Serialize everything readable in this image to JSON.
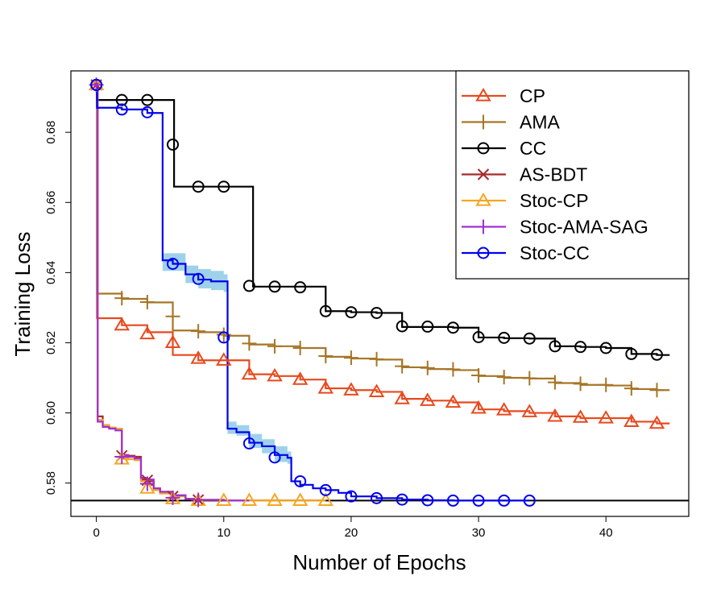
{
  "chart_data": {
    "type": "line",
    "title": "",
    "xlabel": "Number of Epochs",
    "ylabel": "Training Loss",
    "xlim": [
      -2,
      46.5
    ],
    "ylim": [
      0.5705,
      0.6975
    ],
    "xticks": [
      0,
      10,
      20,
      30,
      40
    ],
    "yticks": [
      0.58,
      0.6,
      0.62,
      0.64,
      0.66,
      0.68
    ],
    "ytick_labels": [
      "0.58",
      "0.60",
      "0.62",
      "0.64",
      "0.66",
      "0.68"
    ],
    "reference_line": 0.575,
    "legend_position": "top-right",
    "series": [
      {
        "name": "CP",
        "color": "#e8491d",
        "marker": "triangle",
        "x": [
          0,
          0.05,
          2,
          4,
          6,
          8,
          10,
          12,
          14,
          16,
          18,
          20,
          22,
          24,
          26,
          28,
          30,
          32,
          34,
          36,
          38,
          40,
          42,
          44,
          45
        ],
        "y": [
          0.6935,
          0.627,
          0.625,
          0.623,
          0.6165,
          0.615,
          0.615,
          0.611,
          0.6105,
          0.6095,
          0.607,
          0.6065,
          0.606,
          0.604,
          0.6035,
          0.603,
          0.601,
          0.6005,
          0.6,
          0.599,
          0.5985,
          0.5985,
          0.5975,
          0.597,
          0.597
        ],
        "markers": [
          [
            2,
            0.625
          ],
          [
            4,
            0.6225
          ],
          [
            6,
            0.62
          ],
          [
            8,
            0.6155
          ],
          [
            10,
            0.615
          ],
          [
            12,
            0.611
          ],
          [
            14,
            0.6105
          ],
          [
            16,
            0.6095
          ],
          [
            18,
            0.607
          ],
          [
            20,
            0.6065
          ],
          [
            22,
            0.606
          ],
          [
            24,
            0.604
          ],
          [
            26,
            0.6035
          ],
          [
            28,
            0.603
          ],
          [
            30,
            0.6013
          ],
          [
            32,
            0.6008
          ],
          [
            34,
            0.6003
          ],
          [
            36,
            0.599
          ],
          [
            38,
            0.5987
          ],
          [
            40,
            0.5985
          ],
          [
            42,
            0.5975
          ],
          [
            44,
            0.597
          ]
        ]
      },
      {
        "name": "AMA",
        "color": "#a67626",
        "marker": "plus",
        "x": [
          0,
          0.05,
          2,
          4,
          6,
          8,
          10,
          12,
          14,
          16,
          18,
          20,
          22,
          24,
          26,
          28,
          30,
          32,
          34,
          36,
          38,
          40,
          42,
          44,
          45
        ],
        "y": [
          0.6935,
          0.634,
          0.6325,
          0.6315,
          0.6235,
          0.623,
          0.622,
          0.6195,
          0.619,
          0.6185,
          0.616,
          0.6155,
          0.6152,
          0.613,
          0.6125,
          0.6122,
          0.6105,
          0.61,
          0.6098,
          0.6085,
          0.608,
          0.6078,
          0.6068,
          0.6065,
          0.6065
        ],
        "markers": [
          [
            2,
            0.6327
          ],
          [
            4,
            0.6316
          ],
          [
            6,
            0.6275
          ],
          [
            8,
            0.6233
          ],
          [
            10,
            0.6223
          ],
          [
            12,
            0.6198
          ],
          [
            14,
            0.619
          ],
          [
            16,
            0.6185
          ],
          [
            18,
            0.6162
          ],
          [
            20,
            0.6157
          ],
          [
            22,
            0.6153
          ],
          [
            24,
            0.6133
          ],
          [
            26,
            0.6128
          ],
          [
            28,
            0.6124
          ],
          [
            30,
            0.6107
          ],
          [
            32,
            0.6102
          ],
          [
            34,
            0.6099
          ],
          [
            36,
            0.6087
          ],
          [
            38,
            0.6083
          ],
          [
            40,
            0.608
          ],
          [
            42,
            0.607
          ],
          [
            44,
            0.6065
          ]
        ]
      },
      {
        "name": "CC",
        "color": "#000000",
        "marker": "circle",
        "x": [
          0,
          0.05,
          2,
          4,
          6,
          6.1,
          8,
          10,
          12,
          12.3,
          14,
          16,
          18,
          20,
          22,
          24,
          26,
          28,
          30,
          32,
          34,
          36,
          38,
          40,
          42,
          44,
          45
        ],
        "y": [
          0.6935,
          0.6892,
          0.6892,
          0.6892,
          0.6892,
          0.6645,
          0.6645,
          0.6645,
          0.6645,
          0.636,
          0.636,
          0.636,
          0.629,
          0.6287,
          0.6285,
          0.6245,
          0.6245,
          0.6243,
          0.6215,
          0.6213,
          0.6212,
          0.619,
          0.6188,
          0.6185,
          0.6168,
          0.6165,
          0.6165
        ],
        "markers": [
          [
            0,
            0.6935
          ],
          [
            2,
            0.6892
          ],
          [
            4,
            0.6892
          ],
          [
            6,
            0.6765
          ],
          [
            8,
            0.6645
          ],
          [
            10,
            0.6645
          ],
          [
            12,
            0.6362
          ],
          [
            14,
            0.636
          ],
          [
            16,
            0.6358
          ],
          [
            18,
            0.629
          ],
          [
            20,
            0.6287
          ],
          [
            22,
            0.6285
          ],
          [
            24,
            0.6247
          ],
          [
            26,
            0.6246
          ],
          [
            28,
            0.6243
          ],
          [
            30,
            0.6216
          ],
          [
            32,
            0.6214
          ],
          [
            34,
            0.6212
          ],
          [
            36,
            0.619
          ],
          [
            38,
            0.6188
          ],
          [
            40,
            0.6185
          ],
          [
            42,
            0.6168
          ],
          [
            44,
            0.6166
          ]
        ]
      },
      {
        "name": "AS-BDT",
        "color": "#a52a2a",
        "marker": "x",
        "x": [
          0,
          0.1,
          0.5,
          1,
          1.5,
          2,
          2.5,
          3,
          3.5,
          4,
          4.5,
          5,
          6,
          7,
          8,
          10,
          12,
          18
        ],
        "y": [
          0.6935,
          0.599,
          0.5965,
          0.5958,
          0.5955,
          0.588,
          0.5878,
          0.5875,
          0.581,
          0.5805,
          0.5785,
          0.5775,
          0.5765,
          0.5755,
          0.5752,
          0.575,
          0.575,
          0.575
        ],
        "markers": [
          [
            0,
            0.6935
          ],
          [
            2,
            0.5878
          ],
          [
            4,
            0.5808
          ],
          [
            6,
            0.5762
          ],
          [
            8,
            0.5752
          ]
        ]
      },
      {
        "name": "Stoc-CP",
        "color": "#f5a623",
        "marker": "triangle",
        "x": [
          0,
          0.1,
          0.5,
          1,
          1.5,
          2,
          2.5,
          3,
          3.5,
          4,
          4.5,
          5,
          6,
          7,
          8,
          10,
          12,
          14,
          16,
          18
        ],
        "y": [
          0.6935,
          0.598,
          0.5965,
          0.5958,
          0.5955,
          0.587,
          0.5868,
          0.5865,
          0.5805,
          0.5795,
          0.578,
          0.577,
          0.5762,
          0.5755,
          0.5752,
          0.575,
          0.575,
          0.575,
          0.575,
          0.575
        ],
        "markers": [
          [
            0,
            0.6935
          ],
          [
            2,
            0.5868
          ],
          [
            4,
            0.5785
          ],
          [
            6,
            0.5755
          ],
          [
            8,
            0.575
          ],
          [
            10,
            0.575
          ],
          [
            12,
            0.575
          ],
          [
            14,
            0.575
          ],
          [
            16,
            0.575
          ],
          [
            18,
            0.575
          ]
        ]
      },
      {
        "name": "Stoc-AMA-SAG",
        "color": "#a030d0",
        "marker": "plus",
        "x": [
          0,
          0.1,
          0.5,
          1,
          1.5,
          2,
          2.5,
          3,
          3.5,
          4,
          4.5,
          5,
          6,
          7,
          8,
          10,
          12
        ],
        "y": [
          0.6935,
          0.5975,
          0.596,
          0.5955,
          0.595,
          0.588,
          0.5875,
          0.587,
          0.5815,
          0.581,
          0.5785,
          0.5775,
          0.5765,
          0.5755,
          0.5752,
          0.575,
          0.575
        ],
        "markers": [
          [
            0,
            0.6935
          ],
          [
            2,
            0.5875
          ],
          [
            4,
            0.5798
          ],
          [
            6,
            0.5758
          ],
          [
            8,
            0.5752
          ]
        ]
      },
      {
        "name": "Stoc-CC",
        "color": "#0000ee",
        "marker": "circle",
        "x": [
          0,
          0.05,
          2,
          4,
          5,
          5.2,
          6,
          7,
          8,
          9,
          10,
          10.3,
          11,
          12,
          13,
          14,
          15,
          15.3,
          16,
          17,
          18,
          19,
          20,
          22,
          24,
          26,
          28,
          30,
          32,
          34
        ],
        "y": [
          0.6935,
          0.687,
          0.6865,
          0.6855,
          0.6855,
          0.6435,
          0.6425,
          0.6395,
          0.638,
          0.6375,
          0.6375,
          0.5955,
          0.5945,
          0.5915,
          0.5905,
          0.588,
          0.5872,
          0.5805,
          0.5795,
          0.5785,
          0.578,
          0.5772,
          0.5762,
          0.5757,
          0.5753,
          0.5751,
          0.575,
          0.575,
          0.575,
          0.575
        ],
        "markers": [
          [
            0,
            0.6935
          ],
          [
            2,
            0.6865
          ],
          [
            4,
            0.6857
          ],
          [
            6,
            0.6425
          ],
          [
            8,
            0.6382
          ],
          [
            10,
            0.6215
          ],
          [
            12,
            0.5913
          ],
          [
            14,
            0.5873
          ],
          [
            16,
            0.5805
          ],
          [
            18,
            0.578
          ],
          [
            20,
            0.5762
          ],
          [
            22,
            0.5757
          ],
          [
            24,
            0.5753
          ],
          [
            26,
            0.5751
          ],
          [
            28,
            0.575
          ],
          [
            30,
            0.575
          ],
          [
            32,
            0.575
          ],
          [
            34,
            0.575
          ]
        ],
        "band_color": "#8ecae6",
        "band_x": [
          5.2,
          6,
          7,
          8,
          9,
          10,
          10.3,
          11,
          12,
          13,
          14,
          15
        ],
        "band_lower": [
          0.6405,
          0.6405,
          0.637,
          0.6355,
          0.635,
          0.6345,
          0.594,
          0.5935,
          0.59,
          0.5885,
          0.586,
          0.5855
        ],
        "band_upper": [
          0.6455,
          0.6455,
          0.642,
          0.641,
          0.6405,
          0.6395,
          0.5975,
          0.5965,
          0.594,
          0.5925,
          0.5905,
          0.589
        ]
      }
    ]
  }
}
